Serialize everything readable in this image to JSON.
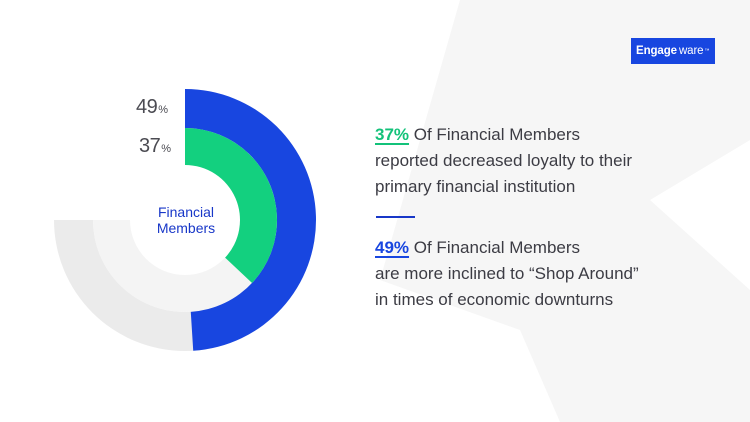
{
  "brand": {
    "logo_left": "Engage",
    "logo_right": "ware",
    "logo_tm": "™",
    "color": "#1846e0"
  },
  "chart_data": {
    "type": "pie",
    "subtype": "radial-bar",
    "center_label": [
      "Financial",
      "Members"
    ],
    "series": [
      {
        "value": 49,
        "label": "49",
        "unit": "%",
        "color": "#1846e0",
        "track_color": "#ebebeb"
      },
      {
        "value": 37,
        "label": "37",
        "unit": "%",
        "color": "#13d07f",
        "track_color": "#f4f4f4"
      }
    ],
    "ylim": [
      0,
      100
    ]
  },
  "stats": [
    {
      "highlight": "37%",
      "lines": [
        "Of Financial Members",
        "reported decreased loyalty to their",
        "primary financial institution"
      ],
      "color": "#13c27a"
    },
    {
      "highlight": "49%",
      "lines": [
        "Of Financial Members",
        "are more inclined to “Shop Around”",
        "in times of economic downturns"
      ],
      "color": "#1846e0"
    }
  ],
  "colors": {
    "text": "#3c3c44",
    "center_label": "#1837c8",
    "divider": "#1837c8"
  }
}
